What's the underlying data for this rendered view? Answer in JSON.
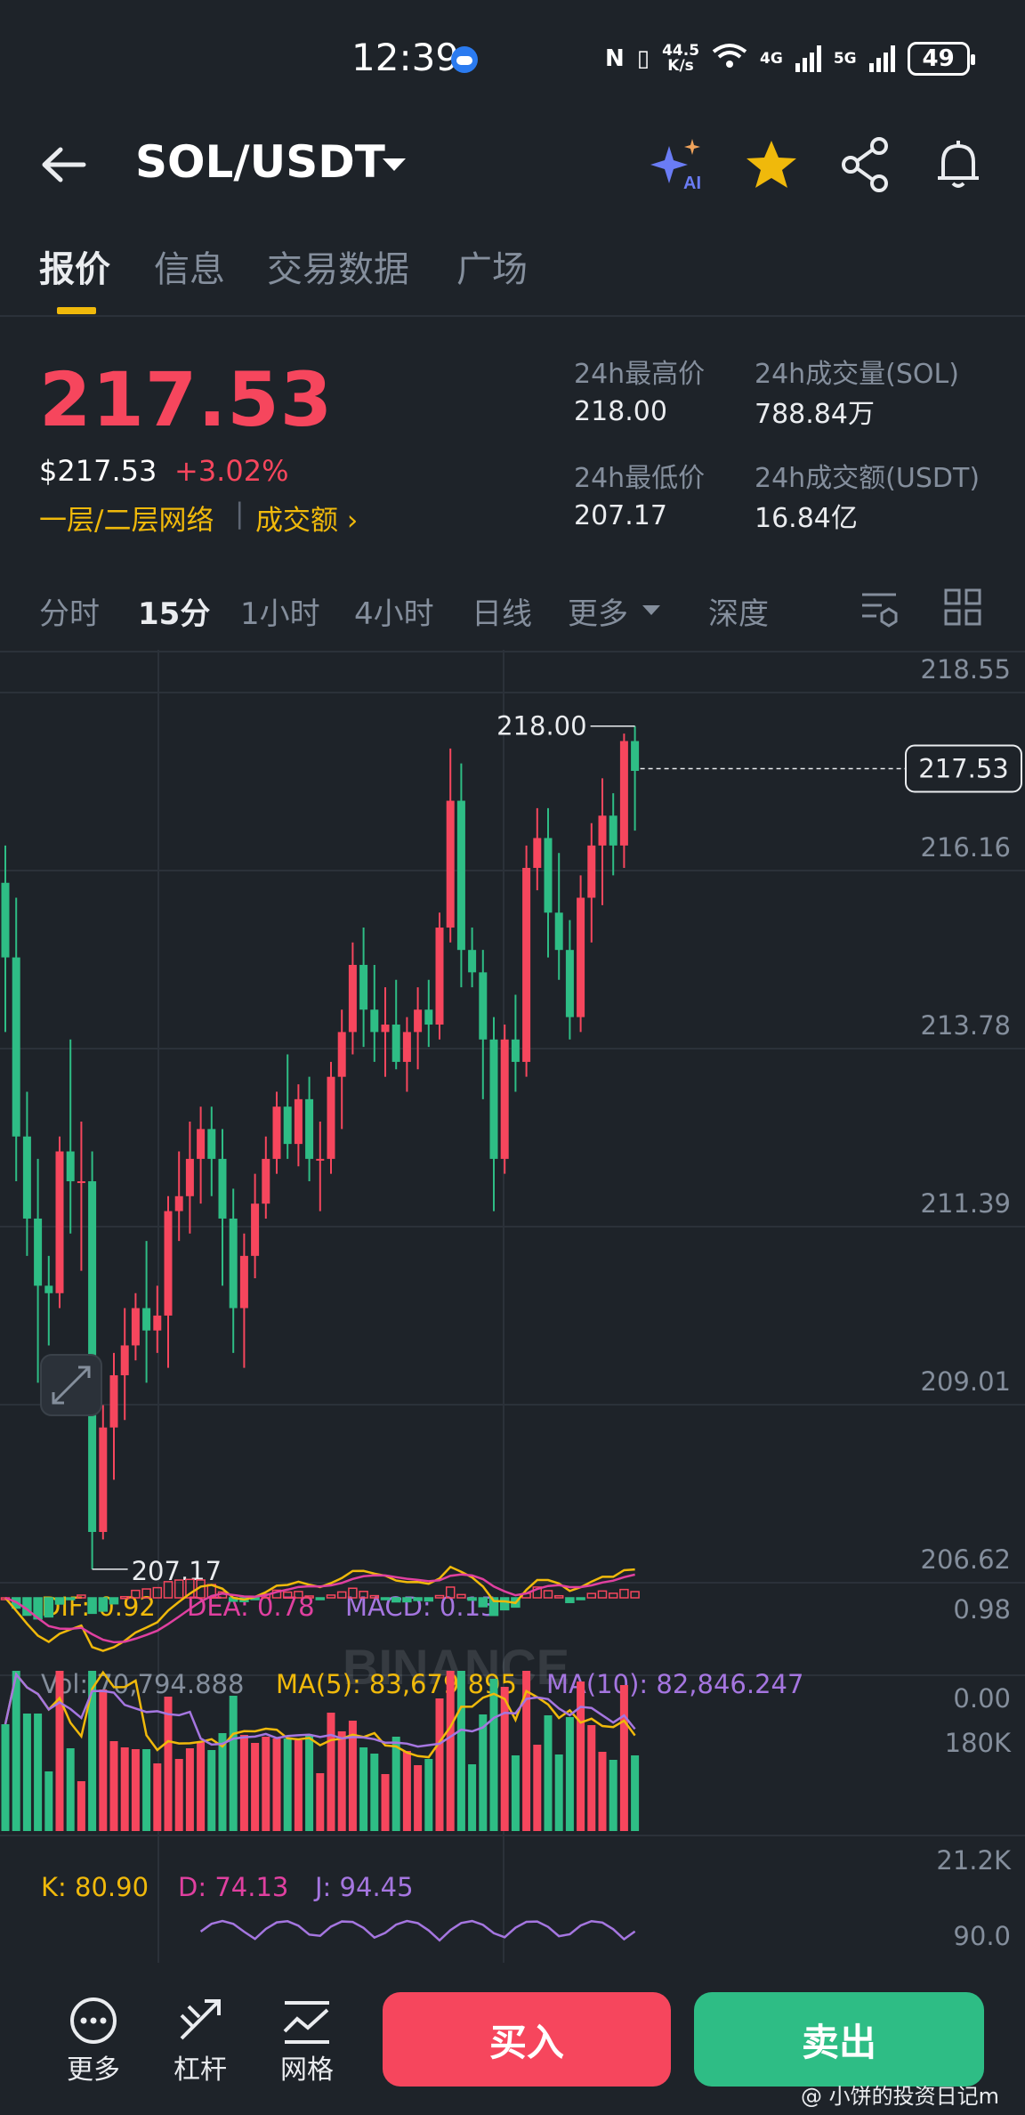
{
  "status_bar": {
    "time": "12:39",
    "net_speed_top": "44.5",
    "net_speed_bottom": "K/s",
    "net1": "4G",
    "net2": "5G",
    "battery": "49"
  },
  "header": {
    "pair": "SOL/USDT",
    "icons": [
      "back-arrow-icon",
      "ai-sparkle-icon",
      "star-icon",
      "share-icon",
      "bell-icon"
    ],
    "ai_label": "AI"
  },
  "tabs": [
    "报价",
    "信息",
    "交易数据",
    "广场"
  ],
  "price": {
    "last": "217.53",
    "usd": "$217.53",
    "change": "+3.02%",
    "tag_network": "一层/二层网络",
    "tag_volume": "成交额",
    "tag_separator": "|",
    "high_label": "24h最高价",
    "high_value": "218.00",
    "low_label": "24h最低价",
    "low_value": "207.17",
    "vol_label": "24h成交量(SOL)",
    "vol_value": "788.84万",
    "amount_label": "24h成交额(USDT)",
    "amount_value": "16.84亿"
  },
  "intervals": {
    "items": [
      "分时",
      "15分",
      "1小时",
      "4小时",
      "日线",
      "更多",
      "深度"
    ],
    "active": "15分"
  },
  "colors": {
    "up": "#f6465d",
    "down": "#2ebd85",
    "accent": "#f0b90b",
    "bg": "#1e2329"
  },
  "chart_data": {
    "type": "candlestick",
    "watermark": "BINANCE",
    "y_ticks": [
      "218.55",
      "216.16",
      "213.78",
      "211.39",
      "209.01",
      "206.62"
    ],
    "ylim": [
      206.62,
      218.55
    ],
    "current_price": "217.53",
    "high_marker": "218.00",
    "low_marker": "207.17",
    "candles": [
      [
        216.0,
        216.5,
        214.0,
        215.0
      ],
      [
        215.0,
        215.8,
        212.0,
        212.6
      ],
      [
        212.6,
        213.2,
        211.0,
        211.5
      ],
      [
        211.5,
        212.3,
        209.3,
        210.6
      ],
      [
        210.6,
        211.0,
        209.8,
        210.5
      ],
      [
        210.5,
        212.6,
        210.3,
        212.4
      ],
      [
        212.4,
        213.9,
        211.3,
        212.0
      ],
      [
        212.0,
        212.8,
        210.8,
        212.0
      ],
      [
        212.0,
        212.4,
        206.8,
        207.3
      ],
      [
        207.3,
        209.0,
        207.2,
        208.7
      ],
      [
        208.7,
        209.7,
        208.0,
        209.4
      ],
      [
        209.4,
        210.3,
        208.8,
        209.8
      ],
      [
        209.8,
        210.5,
        209.6,
        210.3
      ],
      [
        210.3,
        211.2,
        209.3,
        210.0
      ],
      [
        210.0,
        210.6,
        209.7,
        210.2
      ],
      [
        210.2,
        211.8,
        209.5,
        211.6
      ],
      [
        211.6,
        212.4,
        211.2,
        211.8
      ],
      [
        211.8,
        212.8,
        211.3,
        212.3
      ],
      [
        212.3,
        213.0,
        211.7,
        212.7
      ],
      [
        212.7,
        213.0,
        211.8,
        212.3
      ],
      [
        212.3,
        212.7,
        210.6,
        211.5
      ],
      [
        211.5,
        211.9,
        209.7,
        210.3
      ],
      [
        210.3,
        211.3,
        209.5,
        211.0
      ],
      [
        211.0,
        212.1,
        210.7,
        211.7
      ],
      [
        211.7,
        212.6,
        211.5,
        212.3
      ],
      [
        212.3,
        213.2,
        212.1,
        213.0
      ],
      [
        213.0,
        213.7,
        212.3,
        212.5
      ],
      [
        212.5,
        213.3,
        212.2,
        213.1
      ],
      [
        213.1,
        213.4,
        212.0,
        212.3
      ],
      [
        212.3,
        212.8,
        211.6,
        212.3
      ],
      [
        212.3,
        213.6,
        212.1,
        213.4
      ],
      [
        213.4,
        214.3,
        212.7,
        214.0
      ],
      [
        214.0,
        215.2,
        213.7,
        214.9
      ],
      [
        214.9,
        215.4,
        213.8,
        214.3
      ],
      [
        214.3,
        214.9,
        213.6,
        214.0
      ],
      [
        214.0,
        214.6,
        213.4,
        214.1
      ],
      [
        214.1,
        214.7,
        213.5,
        213.6
      ],
      [
        213.6,
        214.2,
        213.2,
        214.0
      ],
      [
        214.0,
        214.6,
        213.5,
        214.3
      ],
      [
        214.3,
        214.7,
        213.8,
        214.1
      ],
      [
        214.1,
        215.6,
        213.9,
        215.4
      ],
      [
        215.4,
        217.8,
        215.2,
        217.1
      ],
      [
        217.1,
        217.6,
        214.6,
        215.1
      ],
      [
        215.1,
        215.4,
        214.6,
        214.8
      ],
      [
        214.8,
        215.1,
        213.1,
        213.9
      ],
      [
        213.9,
        214.2,
        211.6,
        212.3
      ],
      [
        212.3,
        214.1,
        212.1,
        213.9
      ],
      [
        213.9,
        214.5,
        213.2,
        213.6
      ],
      [
        213.6,
        216.5,
        213.4,
        216.2
      ],
      [
        216.2,
        217.0,
        215.9,
        216.6
      ],
      [
        216.6,
        217.0,
        215.0,
        215.6
      ],
      [
        215.6,
        216.4,
        214.7,
        215.1
      ],
      [
        215.1,
        215.5,
        213.9,
        214.2
      ],
      [
        214.2,
        216.1,
        214.0,
        215.8
      ],
      [
        215.8,
        216.8,
        215.2,
        216.5
      ],
      [
        216.5,
        217.4,
        215.7,
        216.9
      ],
      [
        216.9,
        217.2,
        216.1,
        216.5
      ],
      [
        216.5,
        218.0,
        216.2,
        217.9
      ],
      [
        217.9,
        218.1,
        216.7,
        217.5
      ]
    ],
    "macd": {
      "dif_label": "DIF: 0.92",
      "dea_label": "DEA: 0.78",
      "macd_label": "MACD: 0.15",
      "y_ticks": [
        "0.98",
        "0.00"
      ]
    },
    "volume": {
      "vol_label": "Vol: 70,794.888",
      "ma5_label": "MA(5): 83,679.895",
      "ma10_label": "MA(10): 82,846.247",
      "y_ticks": [
        "180K",
        "21.2K"
      ]
    },
    "kdj": {
      "k_label": "K: 80.90",
      "d_label": "D: 74.13",
      "j_label": "J: 94.45",
      "y_ticks": [
        "90.0"
      ]
    }
  },
  "bottom_bar": {
    "more": "更多",
    "leverage": "杠杆",
    "grid": "网格",
    "buy": "买入",
    "sell": "卖出"
  },
  "watermark_note": "@ 小饼的投资日记m"
}
